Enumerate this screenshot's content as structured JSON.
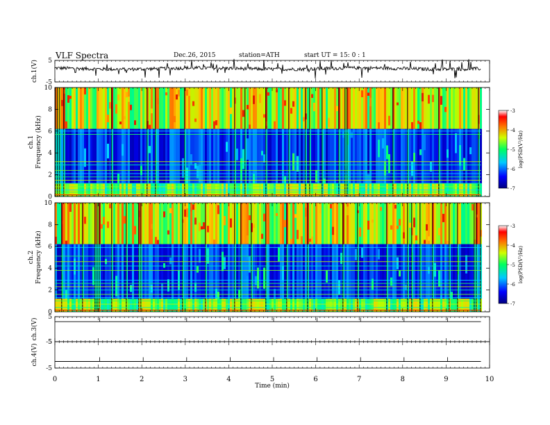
{
  "header": {
    "title": "VLF  Spectra",
    "date": "Dec.26, 2015",
    "station": "station=ATH",
    "start": "start  UT =   15: 0  : 1"
  },
  "chart_data": [
    {
      "type": "line",
      "panel": "waveform",
      "ylabel": "ch.1(V)",
      "ylim": [
        -5,
        5
      ],
      "yticks": [
        "5",
        "-5"
      ],
      "color": "#000000"
    },
    {
      "type": "heatmap",
      "panel": "spectrogram",
      "ylabel_top": "ch.1",
      "ylabel": "Frequency  (kHz)",
      "ylim": [
        0,
        10
      ],
      "yticks": [
        "0",
        "2",
        "4",
        "6",
        "8",
        "10"
      ],
      "colorbar": {
        "label": "log(PSD(V²/Hz)",
        "range": [
          -7,
          -3
        ],
        "ticks": [
          "-3",
          "-4",
          "-5",
          "-6",
          "-7"
        ]
      }
    },
    {
      "type": "heatmap",
      "panel": "spectrogram",
      "ylabel_top": "ch.2",
      "ylabel": "Frequency  (kHz)",
      "ylim": [
        0,
        10
      ],
      "yticks": [
        "0",
        "2",
        "4",
        "6",
        "8",
        "10"
      ],
      "colorbar": {
        "label": "log(PSD(V²/Hz)",
        "range": [
          -7,
          -3
        ],
        "ticks": [
          "-3",
          "-4",
          "-5",
          "-6",
          "-7"
        ]
      }
    },
    {
      "type": "line",
      "panel": "waveform",
      "ylabel": "ch.3(V)",
      "ylim": [
        -5,
        5
      ],
      "yticks": [
        "5",
        "-5"
      ],
      "color": "#000000"
    },
    {
      "type": "line",
      "panel": "waveform",
      "ylabel": "ch.4(V)",
      "ylim": [
        -5,
        5
      ],
      "yticks": [
        "5",
        "-5"
      ],
      "color": "#000000"
    }
  ],
  "x_axis": {
    "label": "Time  (min)",
    "range": [
      0,
      10
    ],
    "ticks": [
      "0",
      "1",
      "2",
      "3",
      "4",
      "5",
      "6",
      "7",
      "8",
      "9",
      "10"
    ],
    "data_end": 9.8
  }
}
